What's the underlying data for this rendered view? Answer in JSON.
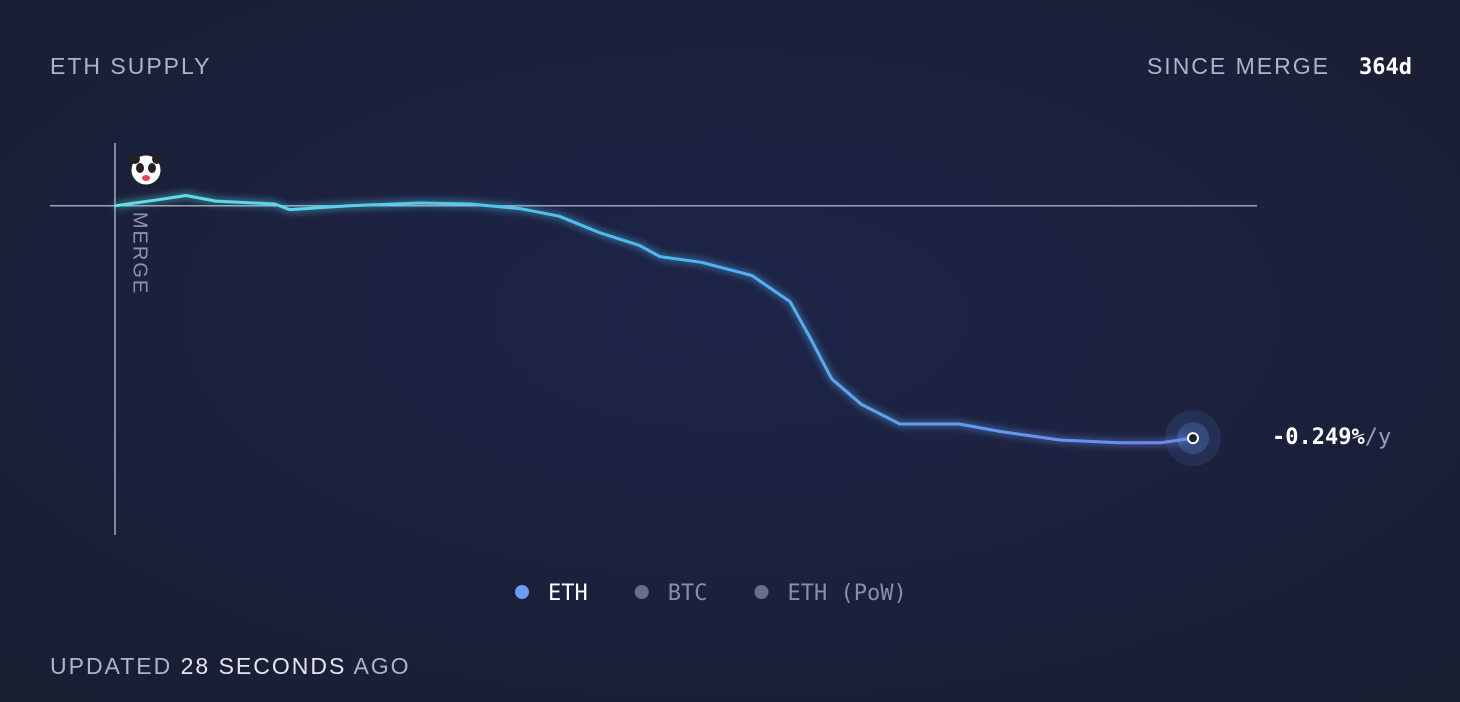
{
  "chart_data": {
    "type": "line",
    "title": "ETH SUPPLY",
    "since_label": "SINCE MERGE",
    "since_value": "364d",
    "marker_label": "MERGE",
    "rate": "-0.249%",
    "rate_unit": "/y",
    "updated_prefix": "UPDATED",
    "updated_age": "28 SECONDS",
    "updated_suffix": "AGO",
    "x": [
      0,
      13.5,
      24,
      34,
      54,
      59,
      79,
      103,
      120,
      137,
      150,
      164,
      177,
      184,
      198,
      215,
      228,
      235,
      242,
      252,
      265,
      285,
      299,
      319,
      339,
      353,
      364
    ],
    "xlim": [
      0,
      364
    ],
    "ylim": [
      -0.35,
      0.07
    ],
    "series": [
      {
        "name": "ETH",
        "color": "#6b9cf5",
        "visible": true,
        "values": [
          0,
          0.006,
          0.011,
          0.005,
          0.002,
          -0.004,
          0,
          0.003,
          0.002,
          -0.003,
          -0.011,
          -0.029,
          -0.042,
          -0.054,
          -0.06,
          -0.074,
          -0.102,
          -0.142,
          -0.184,
          -0.211,
          -0.232,
          -0.232,
          -0.24,
          -0.249,
          -0.252,
          -0.252,
          -0.247
        ]
      },
      {
        "name": "BTC",
        "color": "#6b6f86",
        "visible": false
      },
      {
        "name": "ETH (PoW)",
        "color": "#6b6f86",
        "visible": false
      }
    ]
  }
}
